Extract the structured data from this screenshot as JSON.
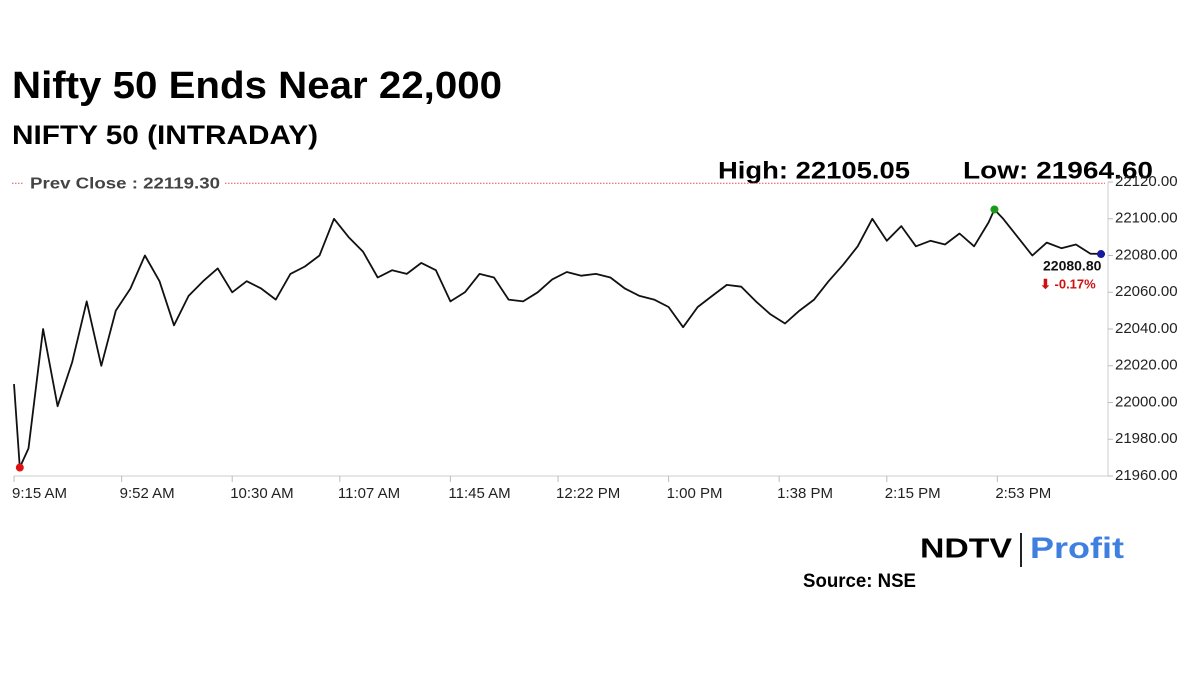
{
  "chart_data": {
    "type": "line",
    "title": "Nifty 50 Ends Near 22,000",
    "subtitle": "NIFTY 50 (INTRADAY)",
    "high_label": "High: 22105.05",
    "low_label": "Low: 21964.60",
    "prev_close": {
      "label": "Prev Close : 22119.30",
      "value": 22119.3,
      "color": "#e05050"
    },
    "last": {
      "label": "22080.80",
      "change": "⬇ -0.17%",
      "color": "#1a1aa0",
      "change_color": "#d01010"
    },
    "high_color": "#1a9a1a",
    "low_color": "#e01010",
    "source": "Source: NSE",
    "logo": {
      "left": "NDTV",
      "right": "Profit"
    },
    "x": [
      "9:15 AM",
      "9:17 AM",
      "9:20 AM",
      "9:25 AM",
      "9:30 AM",
      "9:35 AM",
      "9:40 AM",
      "9:45 AM",
      "9:50 AM",
      "9:55 AM",
      "10:00 AM",
      "10:05 AM",
      "10:10 AM",
      "10:15 AM",
      "10:20 AM",
      "10:25 AM",
      "10:30 AM",
      "10:35 AM",
      "10:40 AM",
      "10:45 AM",
      "10:50 AM",
      "10:55 AM",
      "11:00 AM",
      "11:05 AM",
      "11:10 AM",
      "11:15 AM",
      "11:20 AM",
      "11:25 AM",
      "11:30 AM",
      "11:35 AM",
      "11:40 AM",
      "11:45 AM",
      "11:50 AM",
      "11:55 AM",
      "12:00 PM",
      "12:05 PM",
      "12:10 PM",
      "12:15 PM",
      "12:20 PM",
      "12:25 PM",
      "12:30 PM",
      "12:35 PM",
      "12:40 PM",
      "12:45 PM",
      "12:50 PM",
      "12:55 PM",
      "1:00 PM",
      "1:05 PM",
      "1:10 PM",
      "1:15 PM",
      "1:20 PM",
      "1:25 PM",
      "1:30 PM",
      "1:35 PM",
      "1:40 PM",
      "1:45 PM",
      "1:50 PM",
      "1:55 PM",
      "2:00 PM",
      "2:05 PM",
      "2:10 PM",
      "2:15 PM",
      "2:20 PM",
      "2:25 PM",
      "2:30 PM",
      "2:35 PM",
      "2:40 PM",
      "2:45 PM",
      "2:50 PM",
      "2:52 PM",
      "2:55 PM",
      "3:00 PM",
      "3:05 PM",
      "3:10 PM",
      "3:15 PM",
      "3:20 PM",
      "3:25 PM",
      "3:30 PM"
    ],
    "series": [
      {
        "name": "NIFTY 50",
        "color": "#111111",
        "values": [
          22010,
          21964.6,
          21975,
          22040,
          21998,
          22022,
          22055,
          22020,
          22050,
          22062,
          22080,
          22066,
          22042,
          22058,
          22066,
          22073,
          22060,
          22066,
          22062,
          22056,
          22070,
          22074,
          22080,
          22100,
          22090,
          22082,
          22068,
          22072,
          22070,
          22076,
          22072,
          22055,
          22060,
          22070,
          22068,
          22056,
          22055,
          22060,
          22067,
          22071,
          22069,
          22070,
          22068,
          22062,
          22058,
          22056,
          22052,
          22041,
          22052,
          22058,
          22064,
          22063,
          22055,
          22048,
          22043,
          22050,
          22056,
          22066,
          22075,
          22085,
          22100,
          22088,
          22096,
          22085,
          22088,
          22086,
          22092,
          22085,
          22098,
          22105.05,
          22100,
          22090,
          22080,
          22087,
          22084,
          22086,
          22081,
          22080.8
        ]
      }
    ],
    "xlim": [
      "9:15 AM",
      "3:30 PM"
    ],
    "xticks": [
      "9:15 AM",
      "9:52 AM",
      "10:30 AM",
      "11:07 AM",
      "11:45 AM",
      "12:22 PM",
      "1:00 PM",
      "1:38 PM",
      "2:15 PM",
      "2:53 PM"
    ],
    "ylim": [
      21960,
      22120
    ],
    "yticks": [
      {
        "value": 21960,
        "label": "21960.00"
      },
      {
        "value": 21980,
        "label": "21980.00"
      },
      {
        "value": 22000,
        "label": "22000.00"
      },
      {
        "value": 22020,
        "label": "22020.00"
      },
      {
        "value": 22040,
        "label": "22040.00"
      },
      {
        "value": 22060,
        "label": "22060.00"
      },
      {
        "value": 22080,
        "label": "22080.00"
      },
      {
        "value": 22100,
        "label": "22100.00"
      },
      {
        "value": 22120,
        "label": "22120.00"
      }
    ]
  }
}
